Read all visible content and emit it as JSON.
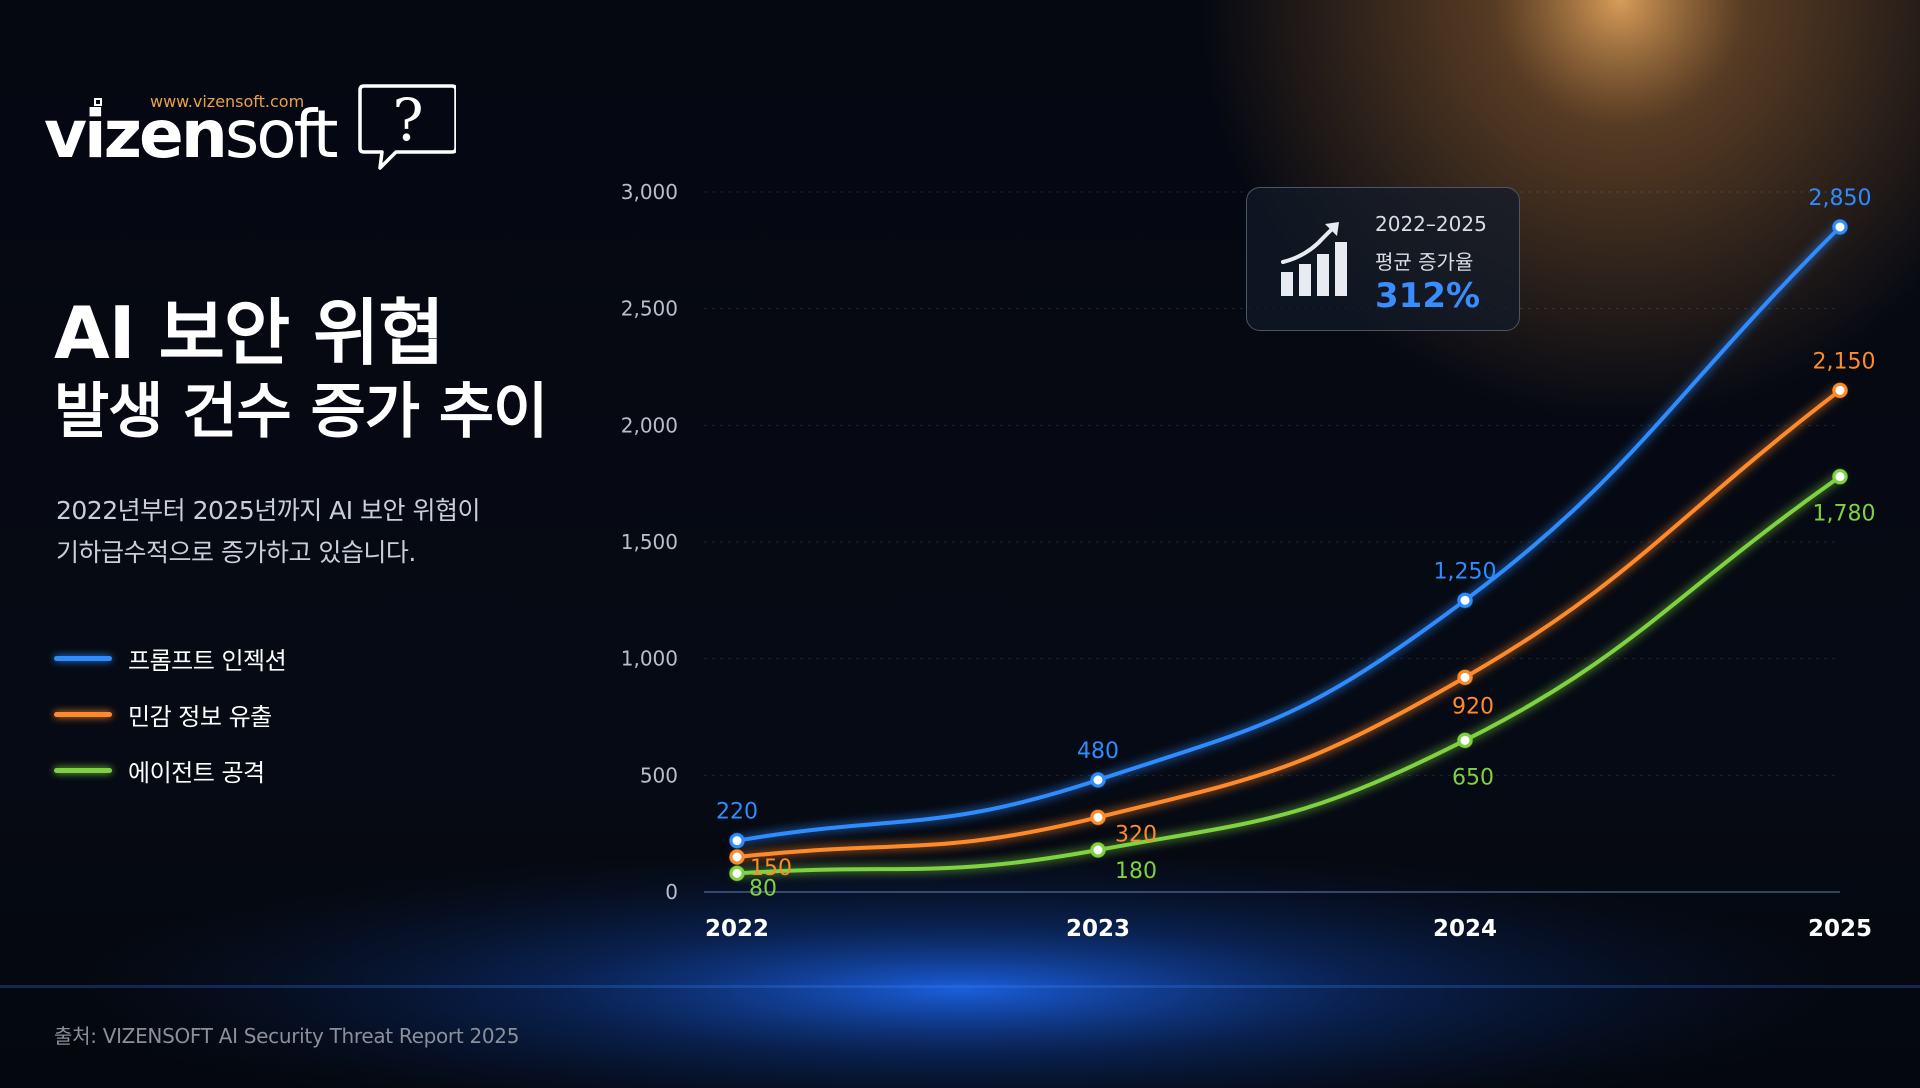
{
  "brand": {
    "url": "www.vizensoft.com",
    "name_bold": "vizen",
    "name_light": "soft",
    "bubble_glyph": "?"
  },
  "headline": {
    "line1": "AI 보안 위협",
    "line2": "발생 건수 증가 추이"
  },
  "description": {
    "line1": "2022년부터 2025년까지 AI 보안 위협이",
    "line2": "기하급수적으로 증가하고 있습니다."
  },
  "legend": [
    {
      "label": "프롬프트 인젝션",
      "color": "#2f8cff"
    },
    {
      "label": "민감 정보 유출",
      "color": "#ff8a2a"
    },
    {
      "label": "에이전트 공격",
      "color": "#7fd23f"
    }
  ],
  "callout": {
    "icon": "bar-chart-growth-icon",
    "period": "2022–2025",
    "label": "평균 증가율",
    "value": "312%"
  },
  "source": "출처: VIZENSOFT AI Security Threat Report 2025",
  "chart_data": {
    "type": "line",
    "categories": [
      "2022",
      "2023",
      "2024",
      "2025"
    ],
    "y_ticks": [
      "0",
      "500",
      "1,000",
      "1,500",
      "2,000",
      "2,500",
      "3,000"
    ],
    "ylim": [
      0,
      3000
    ],
    "grid": true,
    "series": [
      {
        "name": "프롬프트 인젝션",
        "color": "#2f8cff",
        "values": [
          220,
          480,
          1250,
          2850
        ],
        "value_labels": [
          "220",
          "480",
          "1,250",
          "2,850"
        ]
      },
      {
        "name": "민감 정보 유출",
        "color": "#ff8a2a",
        "values": [
          150,
          320,
          920,
          2150
        ],
        "value_labels": [
          "150",
          "320",
          "920",
          "2,150"
        ]
      },
      {
        "name": "에이전트 공격",
        "color": "#7fd23f",
        "values": [
          80,
          180,
          650,
          1780
        ],
        "value_labels": [
          "80",
          "180",
          "650",
          "1,780"
        ]
      }
    ]
  }
}
